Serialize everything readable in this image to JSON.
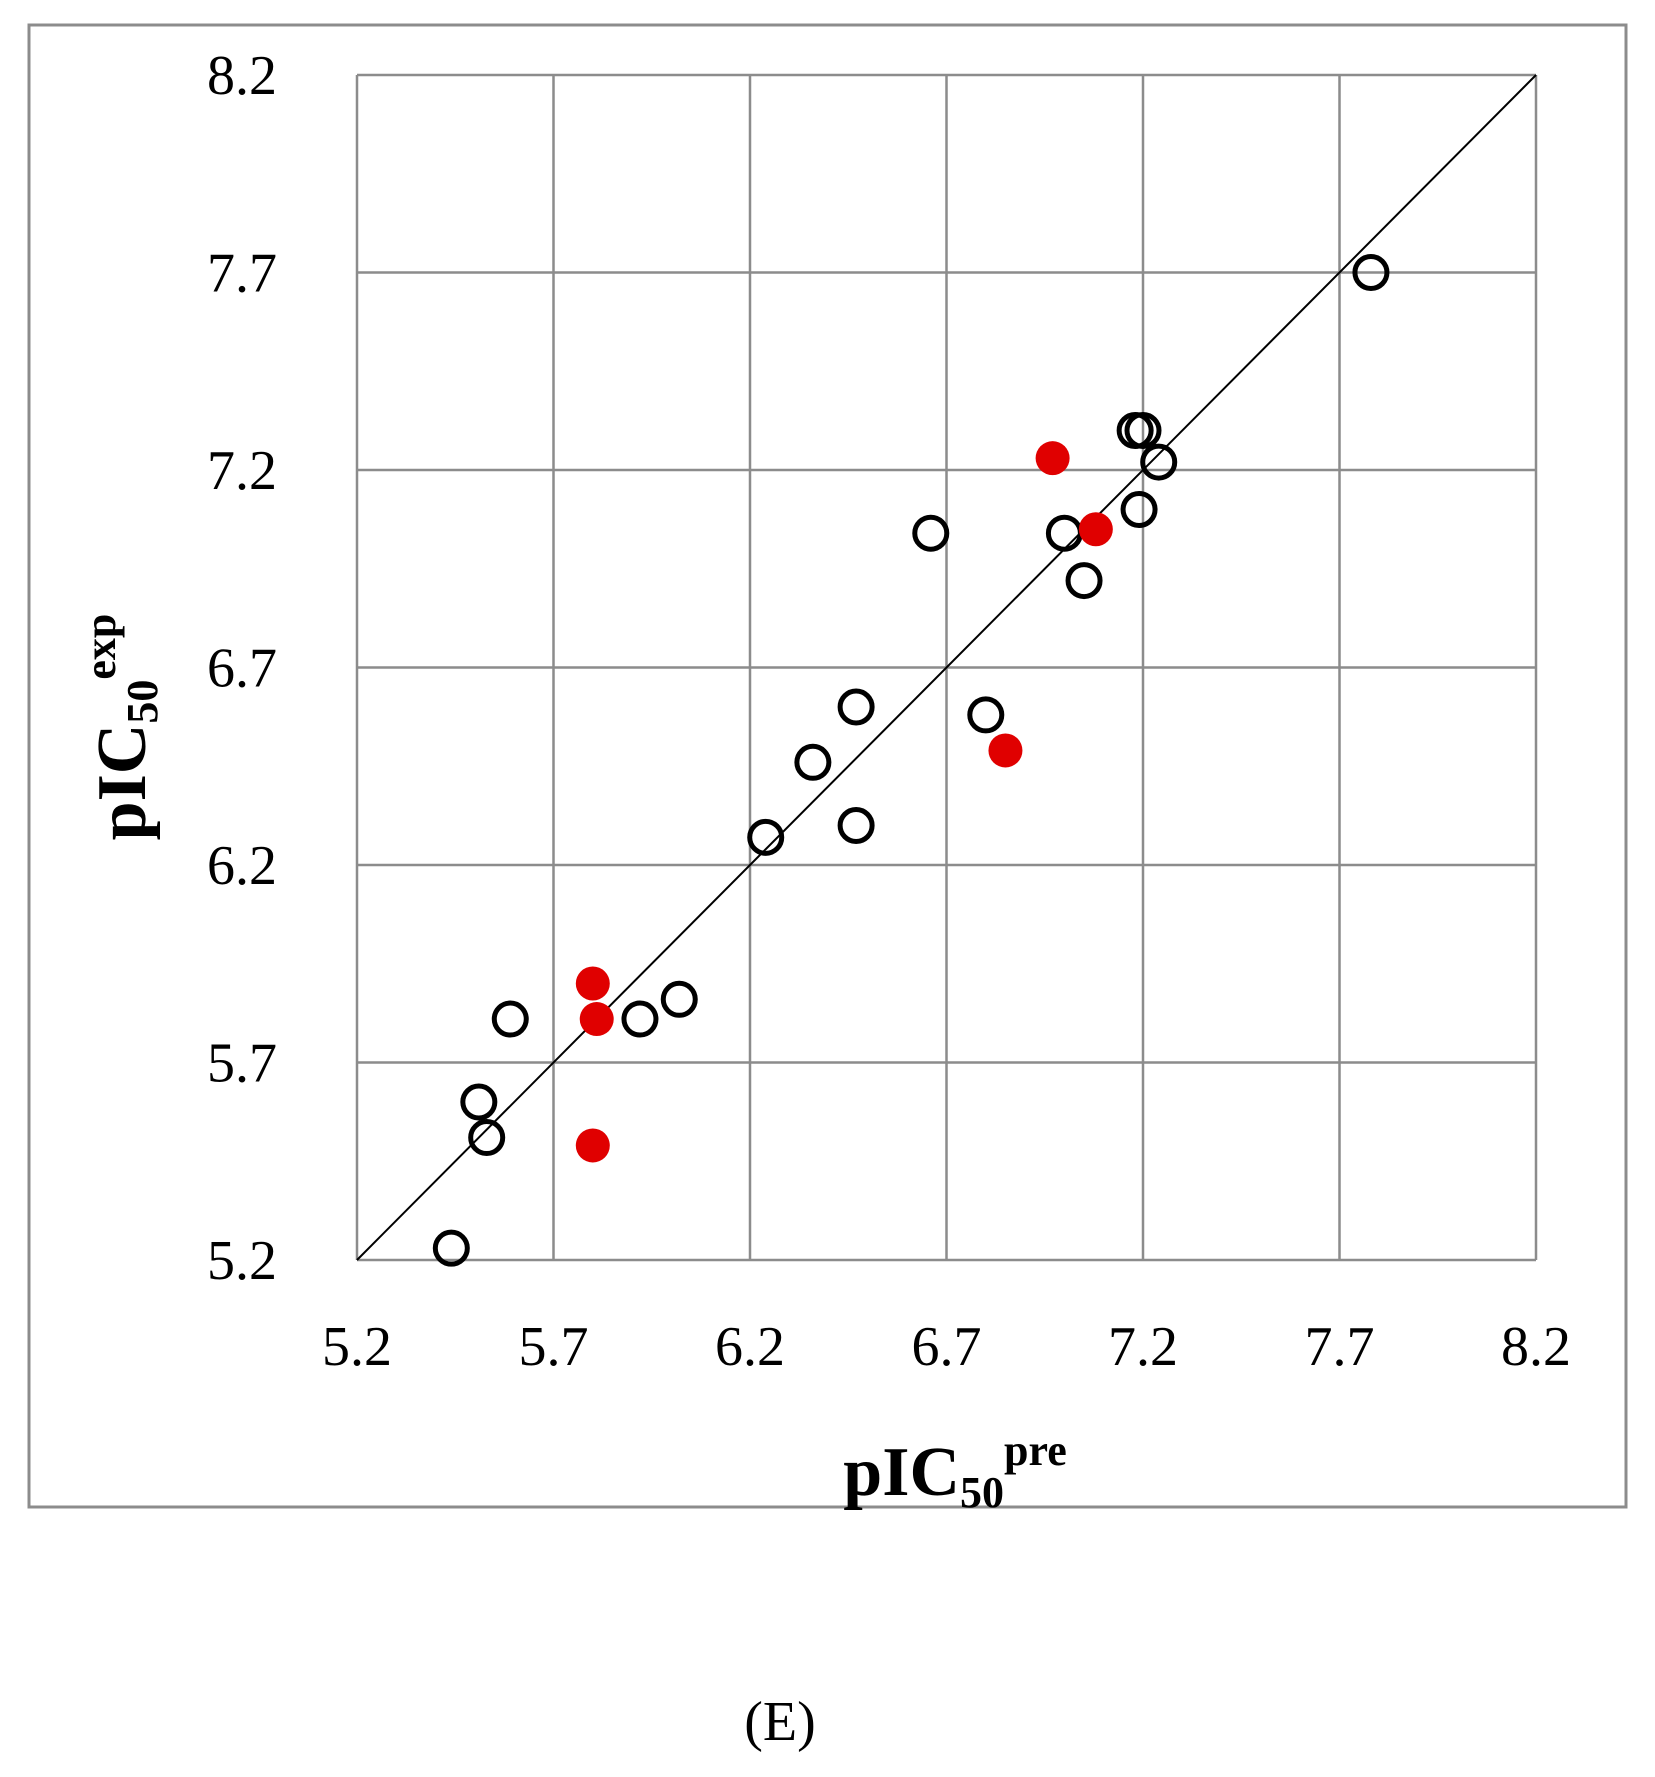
{
  "chart_data": {
    "type": "scatter",
    "title": "",
    "panel_label": "(E)",
    "xlabel": {
      "main": "pIC",
      "sub": "50",
      "sup": "pre"
    },
    "ylabel": {
      "main": "pIC",
      "sub": "50",
      "sup": "exp"
    },
    "xlim": [
      5.2,
      8.2
    ],
    "ylim": [
      5.2,
      8.2
    ],
    "x_ticks": [
      5.2,
      5.7,
      6.2,
      6.7,
      7.2,
      7.7,
      8.2
    ],
    "y_ticks": [
      5.2,
      5.7,
      6.2,
      6.7,
      7.2,
      7.7,
      8.2
    ],
    "x_tick_labels": [
      "5.2",
      "5.7",
      "6.2",
      "6.7",
      "7.2",
      "7.7",
      "8.2"
    ],
    "y_tick_labels": [
      "5.2",
      "5.7",
      "6.2",
      "6.7",
      "7.2",
      "7.7",
      "8.2"
    ],
    "grid": true,
    "reference_line": {
      "x": [
        5.2,
        8.2
      ],
      "y": [
        5.2,
        8.2
      ]
    },
    "series": [
      {
        "marker": "open-circle",
        "color": "#000000",
        "points": [
          [
            5.44,
            5.23
          ],
          [
            5.51,
            5.6
          ],
          [
            5.53,
            5.51
          ],
          [
            5.59,
            5.81
          ],
          [
            5.92,
            5.81
          ],
          [
            6.02,
            5.86
          ],
          [
            6.24,
            6.27
          ],
          [
            6.36,
            6.46
          ],
          [
            6.47,
            6.3
          ],
          [
            6.47,
            6.6
          ],
          [
            6.66,
            7.04
          ],
          [
            6.8,
            6.58
          ],
          [
            7.0,
            7.04
          ],
          [
            7.05,
            6.92
          ],
          [
            7.18,
            7.3
          ],
          [
            7.2,
            7.3
          ],
          [
            7.19,
            7.1
          ],
          [
            7.24,
            7.22
          ],
          [
            7.78,
            7.7
          ]
        ]
      },
      {
        "marker": "filled-circle",
        "color": "#e00000",
        "points": [
          [
            5.8,
            5.9
          ],
          [
            5.81,
            5.81
          ],
          [
            5.8,
            5.49
          ],
          [
            6.85,
            6.49
          ],
          [
            6.97,
            7.23
          ],
          [
            7.08,
            7.05
          ]
        ]
      }
    ]
  }
}
